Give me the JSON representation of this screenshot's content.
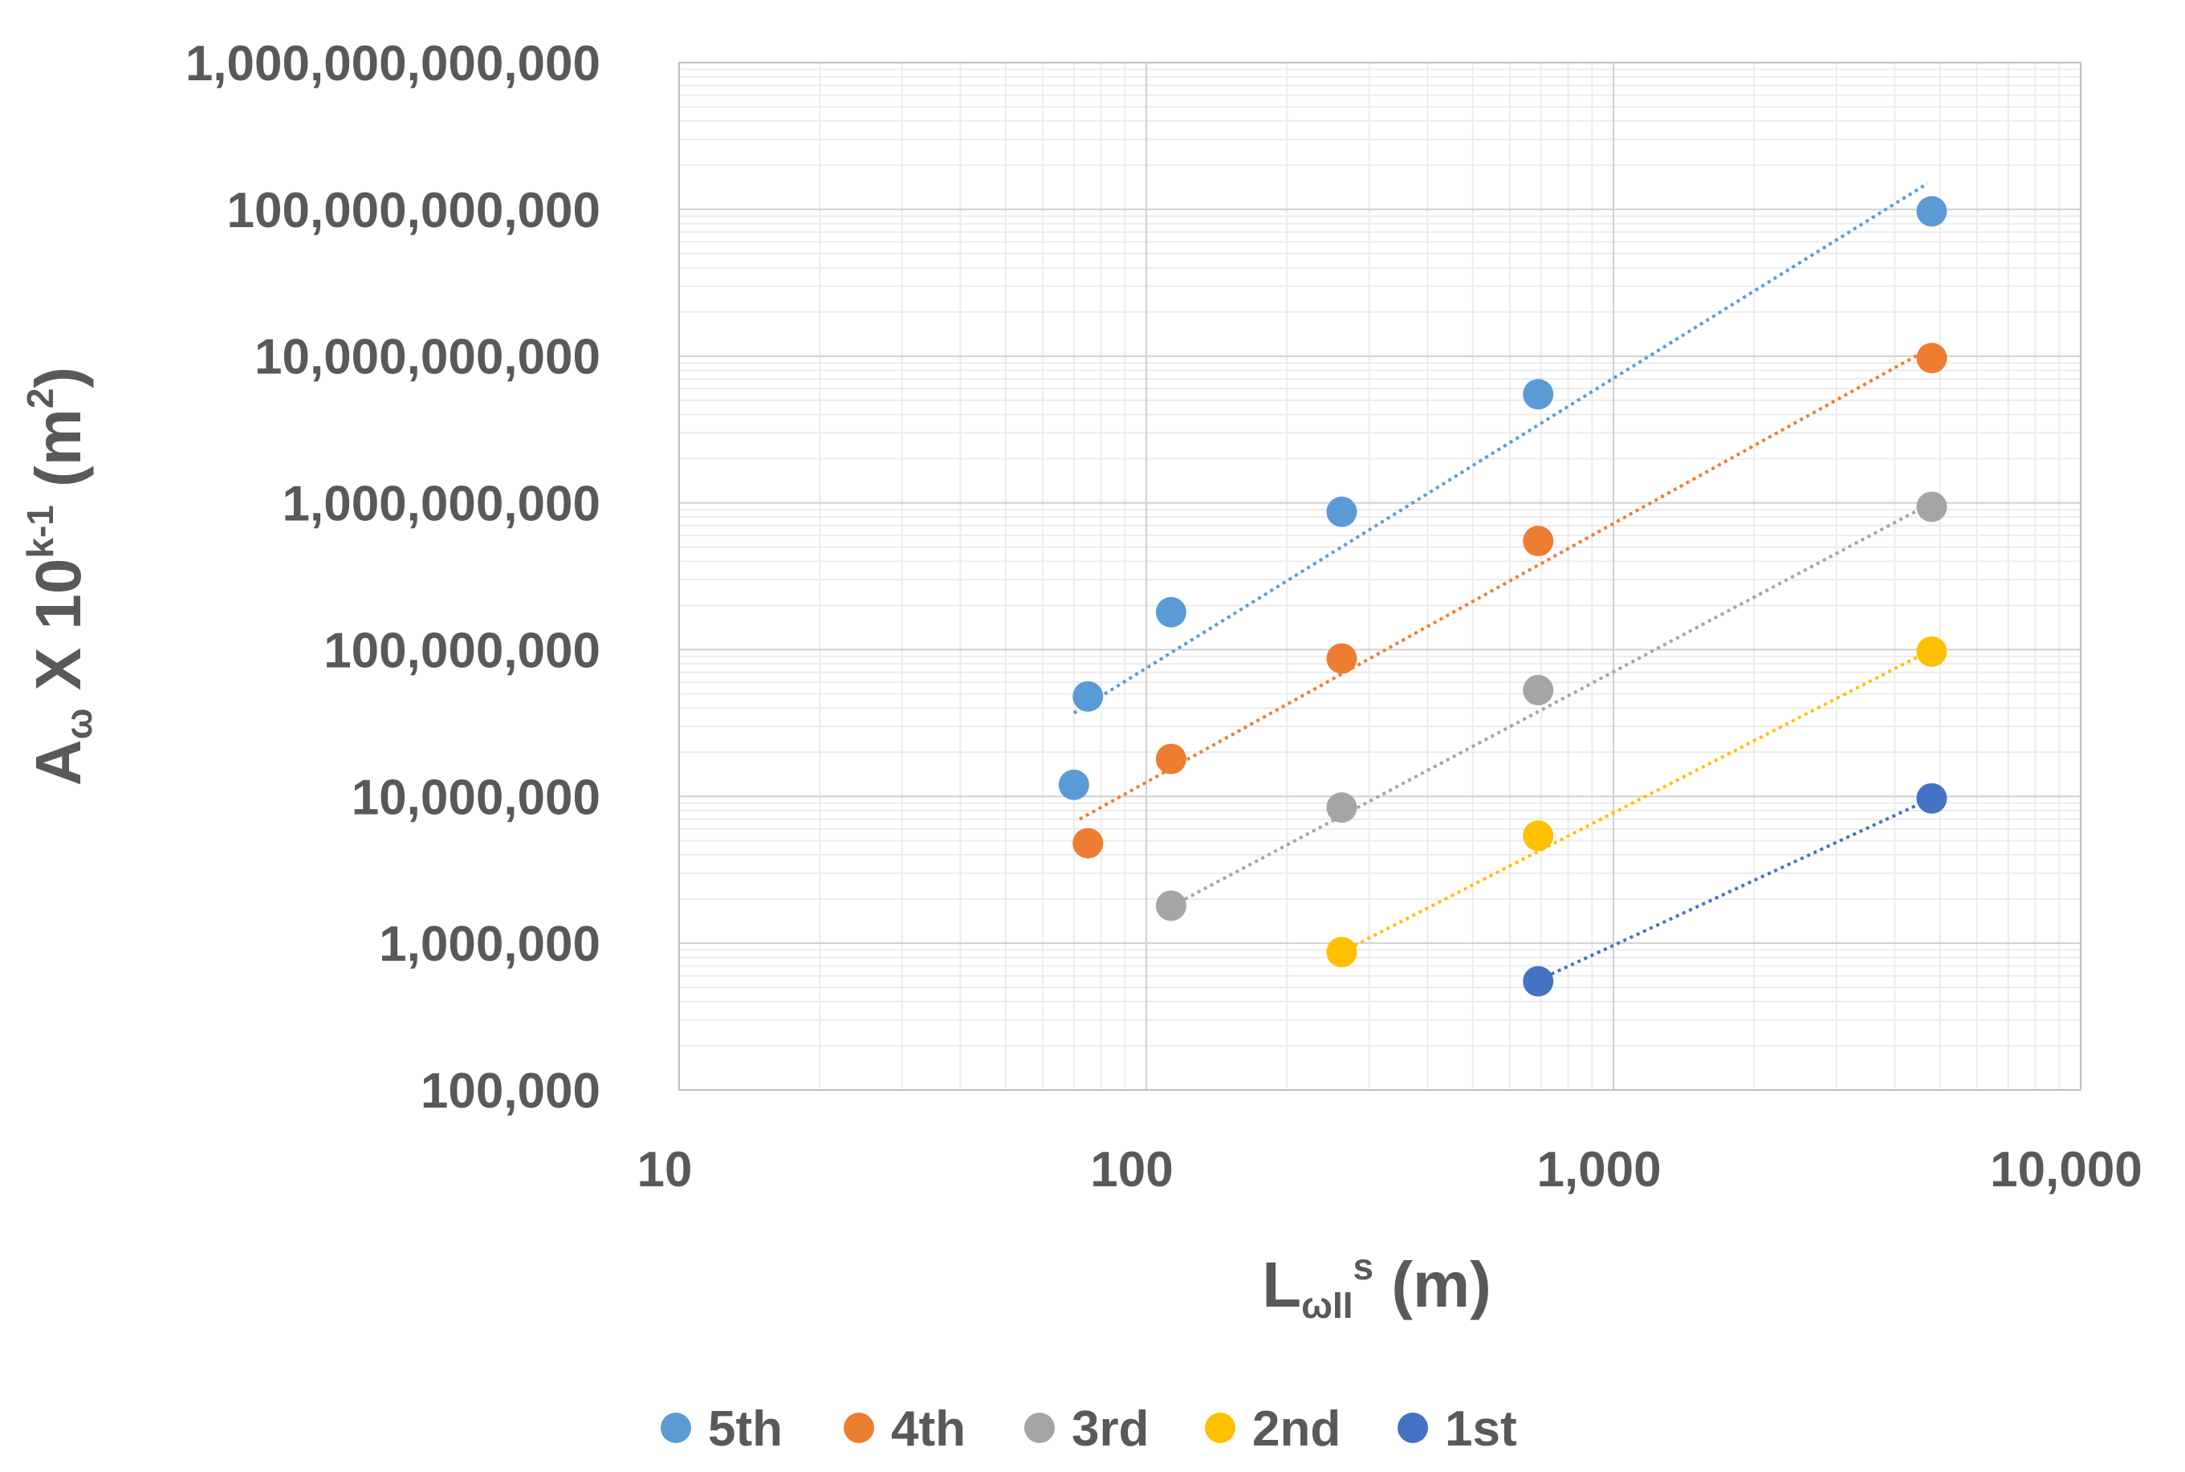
{
  "chart_data": {
    "type": "scatter",
    "xscale": "log",
    "yscale": "log",
    "xlim": [
      10,
      10000
    ],
    "ylim": [
      100000,
      1000000000000
    ],
    "grid": true,
    "xlabel": {
      "main": "L",
      "sub": "ωII",
      "sup": "s",
      "unit": " (m)"
    },
    "ylabel": {
      "main": "A",
      "sub": "ω",
      "mid": " X 10",
      "sup": "k-1",
      "unit": " (m",
      "unit_sup": "2",
      "unit_end": ")"
    },
    "x_ticks": [
      {
        "value": 10,
        "label": "10"
      },
      {
        "value": 100,
        "label": "100"
      },
      {
        "value": 1000,
        "label": "1,000"
      },
      {
        "value": 10000,
        "label": "10,000"
      }
    ],
    "y_ticks": [
      {
        "value": 100000,
        "label": "100,000"
      },
      {
        "value": 1000000,
        "label": "1,000,000"
      },
      {
        "value": 10000000,
        "label": "10,000,000"
      },
      {
        "value": 100000000,
        "label": "100,000,000"
      },
      {
        "value": 1000000000,
        "label": "1,000,000,000"
      },
      {
        "value": 10000000000,
        "label": "10,000,000,000"
      },
      {
        "value": 100000000000,
        "label": "100,000,000,000"
      },
      {
        "value": 1000000000000,
        "label": "1,000,000,000,000"
      }
    ],
    "legend_position": "bottom",
    "series": [
      {
        "name": "5th",
        "color": "#5B9BD5",
        "x": [
          70,
          75,
          113,
          262,
          690,
          4800
        ],
        "y": [
          12000000,
          48000000,
          180000000,
          870000000,
          5500000000,
          97000000000
        ],
        "trend": {
          "x": [
            70,
            4700
          ],
          "y": [
            37000000,
            150000000000
          ]
        }
      },
      {
        "name": "4th",
        "color": "#ED7D31",
        "x": [
          75,
          113,
          262,
          690,
          4800
        ],
        "y": [
          4800000,
          18000000,
          87000000,
          550000000,
          9700000000
        ],
        "trend": {
          "x": [
            72,
            4800
          ],
          "y": [
            7000000,
            11500000000
          ]
        }
      },
      {
        "name": "3rd",
        "color": "#A5A5A5",
        "x": [
          113,
          262,
          690,
          4800
        ],
        "y": [
          1800000,
          8400000,
          53000000,
          940000000
        ],
        "trend": {
          "x": [
            110,
            4800
          ],
          "y": [
            1700000,
            1000000000
          ]
        }
      },
      {
        "name": "2nd",
        "color": "#FFC000",
        "x": [
          262,
          690,
          4800
        ],
        "y": [
          870000,
          5400000,
          97000000
        ],
        "trend": {
          "x": [
            262,
            4800
          ],
          "y": [
            870000,
            100000000
          ]
        }
      },
      {
        "name": "1st",
        "color": "#4472C4",
        "x": [
          690,
          4800
        ],
        "y": [
          550000,
          9700000
        ],
        "trend": {
          "x": [
            690,
            4800
          ],
          "y": [
            560000,
            9700000
          ]
        }
      }
    ]
  }
}
